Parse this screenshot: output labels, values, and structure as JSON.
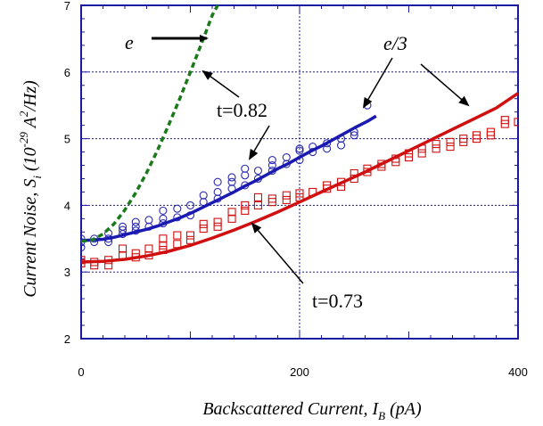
{
  "chart_data": {
    "type": "scatter",
    "xlim": [
      0,
      400
    ],
    "ylim": [
      2,
      7
    ],
    "x_ticks": [
      0,
      200,
      400
    ],
    "y_ticks": [
      2,
      3,
      4,
      5,
      6,
      7
    ],
    "grid": true,
    "xlabel_text": "Backscattered Current, I",
    "xlabel_sub": "B",
    "xlabel_unit": " (pA)",
    "ylabel_text": "Current Noise, S",
    "ylabel_sub": "i",
    "ylabel_unit_open": " (10",
    "ylabel_exp": "-29",
    "ylabel_unit_mid": " A",
    "ylabel_exp2": "2",
    "ylabel_unit_close": "/Hz)",
    "annotations": {
      "e_label": "e",
      "e3_label": "e/3",
      "t082_label": "t=0.82",
      "t073_label": "t=0.73"
    },
    "colors": {
      "blue": "#1a1aa0",
      "red": "#d01010",
      "green": "#1a7a1a",
      "axis": "#1a1aa0"
    },
    "series": [
      {
        "marker": "circle",
        "color": "#2a2ab0",
        "points": [
          [
            0,
            3.37
          ],
          [
            0,
            3.45
          ],
          [
            0,
            3.5
          ],
          [
            12,
            3.45
          ],
          [
            12,
            3.5
          ],
          [
            25,
            3.45
          ],
          [
            25,
            3.5
          ],
          [
            25,
            3.58
          ],
          [
            38,
            3.57
          ],
          [
            38,
            3.63
          ],
          [
            38,
            3.68
          ],
          [
            50,
            3.62
          ],
          [
            50,
            3.68
          ],
          [
            50,
            3.75
          ],
          [
            62,
            3.68
          ],
          [
            62,
            3.78
          ],
          [
            75,
            3.73
          ],
          [
            75,
            3.8
          ],
          [
            75,
            3.92
          ],
          [
            88,
            3.82
          ],
          [
            88,
            3.95
          ],
          [
            100,
            3.85
          ],
          [
            100,
            4.0
          ],
          [
            112,
            4.05
          ],
          [
            112,
            4.15
          ],
          [
            125,
            4.1
          ],
          [
            125,
            4.2
          ],
          [
            125,
            4.35
          ],
          [
            138,
            4.25
          ],
          [
            138,
            4.35
          ],
          [
            138,
            4.42
          ],
          [
            150,
            4.3
          ],
          [
            150,
            4.45
          ],
          [
            150,
            4.55
          ],
          [
            162,
            4.4
          ],
          [
            162,
            4.52
          ],
          [
            175,
            4.52
          ],
          [
            175,
            4.6
          ],
          [
            175,
            4.68
          ],
          [
            188,
            4.62
          ],
          [
            188,
            4.72
          ],
          [
            200,
            4.68
          ],
          [
            200,
            4.82
          ],
          [
            200,
            4.85
          ],
          [
            212,
            4.8
          ],
          [
            212,
            4.88
          ],
          [
            225,
            4.85
          ],
          [
            225,
            4.93
          ],
          [
            238,
            4.9
          ],
          [
            238,
            5.0
          ],
          [
            250,
            5.05
          ],
          [
            250,
            5.1
          ],
          [
            262,
            5.5
          ]
        ]
      },
      {
        "marker": "square",
        "color": "#d01010",
        "points": [
          [
            0,
            3.13
          ],
          [
            0,
            3.18
          ],
          [
            12,
            3.1
          ],
          [
            12,
            3.15
          ],
          [
            25,
            3.1
          ],
          [
            25,
            3.18
          ],
          [
            38,
            3.25
          ],
          [
            38,
            3.35
          ],
          [
            50,
            3.22
          ],
          [
            50,
            3.28
          ],
          [
            62,
            3.25
          ],
          [
            62,
            3.35
          ],
          [
            75,
            3.33
          ],
          [
            75,
            3.4
          ],
          [
            75,
            3.5
          ],
          [
            88,
            3.42
          ],
          [
            88,
            3.55
          ],
          [
            100,
            3.48
          ],
          [
            100,
            3.55
          ],
          [
            112,
            3.65
          ],
          [
            112,
            3.72
          ],
          [
            125,
            3.68
          ],
          [
            125,
            3.75
          ],
          [
            138,
            3.8
          ],
          [
            138,
            3.9
          ],
          [
            150,
            3.92
          ],
          [
            150,
            4.0
          ],
          [
            162,
            4.0
          ],
          [
            162,
            4.12
          ],
          [
            175,
            4.05
          ],
          [
            175,
            4.1
          ],
          [
            188,
            4.08
          ],
          [
            188,
            4.15
          ],
          [
            200,
            4.12
          ],
          [
            200,
            4.18
          ],
          [
            212,
            4.2
          ],
          [
            225,
            4.25
          ],
          [
            225,
            4.3
          ],
          [
            238,
            4.28
          ],
          [
            238,
            4.35
          ],
          [
            250,
            4.4
          ],
          [
            250,
            4.48
          ],
          [
            262,
            4.5
          ],
          [
            262,
            4.55
          ],
          [
            275,
            4.58
          ],
          [
            275,
            4.62
          ],
          [
            288,
            4.65
          ],
          [
            288,
            4.7
          ],
          [
            300,
            4.72
          ],
          [
            300,
            4.78
          ],
          [
            312,
            4.78
          ],
          [
            312,
            4.85
          ],
          [
            325,
            4.85
          ],
          [
            325,
            4.92
          ],
          [
            338,
            4.88
          ],
          [
            338,
            4.95
          ],
          [
            350,
            4.95
          ],
          [
            350,
            5.0
          ],
          [
            362,
            5.0
          ],
          [
            362,
            5.05
          ],
          [
            375,
            5.05
          ],
          [
            375,
            5.1
          ],
          [
            388,
            5.22
          ],
          [
            388,
            5.28
          ],
          [
            400,
            5.25
          ]
        ]
      },
      {
        "marker": "line",
        "color": "#1a1ab0",
        "points": [
          [
            0,
            3.47
          ],
          [
            10,
            3.48
          ],
          [
            20,
            3.49
          ],
          [
            30,
            3.52
          ],
          [
            40,
            3.56
          ],
          [
            50,
            3.6
          ],
          [
            60,
            3.64
          ],
          [
            70,
            3.69
          ],
          [
            80,
            3.75
          ],
          [
            90,
            3.81
          ],
          [
            100,
            3.88
          ],
          [
            110,
            3.96
          ],
          [
            120,
            4.04
          ],
          [
            130,
            4.12
          ],
          [
            140,
            4.2
          ],
          [
            150,
            4.29
          ],
          [
            160,
            4.37
          ],
          [
            170,
            4.46
          ],
          [
            180,
            4.55
          ],
          [
            190,
            4.63
          ],
          [
            200,
            4.72
          ],
          [
            210,
            4.81
          ],
          [
            220,
            4.89
          ],
          [
            230,
            4.98
          ],
          [
            240,
            5.07
          ],
          [
            250,
            5.16
          ],
          [
            262,
            5.26
          ],
          [
            270,
            5.34
          ]
        ]
      },
      {
        "marker": "line",
        "color": "#d01010",
        "points": [
          [
            0,
            3.15
          ],
          [
            20,
            3.16
          ],
          [
            40,
            3.19
          ],
          [
            60,
            3.24
          ],
          [
            80,
            3.31
          ],
          [
            100,
            3.4
          ],
          [
            120,
            3.51
          ],
          [
            140,
            3.63
          ],
          [
            160,
            3.76
          ],
          [
            180,
            3.9
          ],
          [
            200,
            4.05
          ],
          [
            220,
            4.2
          ],
          [
            240,
            4.35
          ],
          [
            260,
            4.5
          ],
          [
            280,
            4.66
          ],
          [
            300,
            4.82
          ],
          [
            320,
            4.98
          ],
          [
            340,
            5.14
          ],
          [
            360,
            5.3
          ],
          [
            380,
            5.46
          ],
          [
            400,
            5.68
          ]
        ]
      },
      {
        "marker": "dashed-line",
        "color": "#1a7a1a",
        "points": [
          [
            0,
            3.46
          ],
          [
            10,
            3.48
          ],
          [
            20,
            3.57
          ],
          [
            30,
            3.72
          ],
          [
            40,
            3.93
          ],
          [
            50,
            4.19
          ],
          [
            60,
            4.49
          ],
          [
            70,
            4.83
          ],
          [
            80,
            5.2
          ],
          [
            90,
            5.59
          ],
          [
            100,
            6.0
          ],
          [
            110,
            6.42
          ],
          [
            120,
            6.85
          ],
          [
            125,
            7.0
          ]
        ]
      }
    ]
  }
}
